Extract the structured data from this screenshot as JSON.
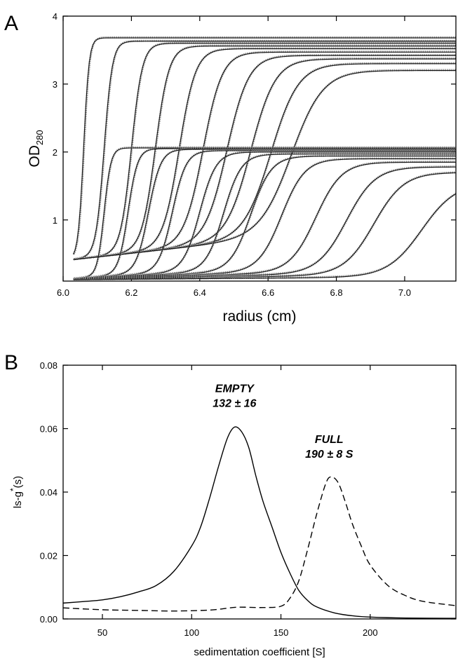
{
  "chart_data": [
    {
      "panel": "A",
      "type": "line",
      "xlabel": "radius (cm)",
      "ylabel": "OD",
      "ylabel_sub": "280",
      "xlim": [
        6.0,
        7.15
      ],
      "ylim": [
        0.1,
        4.0
      ],
      "xticks": [
        6.0,
        6.2,
        6.4,
        6.6,
        6.8,
        7.0
      ],
      "xtick_labels": [
        "6.0",
        "6.2",
        "6.4",
        "6.6",
        "6.8",
        "7.0"
      ],
      "yticks": [
        1,
        2,
        3,
        4
      ],
      "ytick_labels": [
        "1",
        "2",
        "3",
        "4"
      ],
      "series_groups": [
        {
          "plateau": 3.65,
          "meniscus": 6.03,
          "baseline": 0.4,
          "scans": [
            {
              "midpoint": 6.06,
              "width": 0.008,
              "plateau": 3.68
            },
            {
              "midpoint": 6.12,
              "width": 0.012,
              "plateau": 3.63
            },
            {
              "midpoint": 6.2,
              "width": 0.016,
              "plateau": 3.6
            },
            {
              "midpoint": 6.27,
              "width": 0.02,
              "plateau": 3.56
            },
            {
              "midpoint": 6.34,
              "width": 0.024,
              "plateau": 3.52
            },
            {
              "midpoint": 6.41,
              "width": 0.028,
              "plateau": 3.47
            },
            {
              "midpoint": 6.48,
              "width": 0.032,
              "plateau": 3.42
            },
            {
              "midpoint": 6.55,
              "width": 0.036,
              "plateau": 3.37
            },
            {
              "midpoint": 6.61,
              "width": 0.04,
              "plateau": 3.3
            },
            {
              "midpoint": 6.67,
              "width": 0.046,
              "plateau": 3.2
            }
          ]
        },
        {
          "plateau": 2.05,
          "meniscus": 6.03,
          "baseline": 0.12,
          "scans": [
            {
              "midpoint": 6.12,
              "width": 0.01,
              "plateau": 2.06
            },
            {
              "midpoint": 6.19,
              "width": 0.014,
              "plateau": 2.05
            },
            {
              "midpoint": 6.25,
              "width": 0.018,
              "plateau": 2.04
            },
            {
              "midpoint": 6.32,
              "width": 0.02,
              "plateau": 2.02
            },
            {
              "midpoint": 6.4,
              "width": 0.024,
              "plateau": 2.0
            },
            {
              "midpoint": 6.47,
              "width": 0.026,
              "plateau": 1.97
            },
            {
              "midpoint": 6.55,
              "width": 0.03,
              "plateau": 1.94
            },
            {
              "midpoint": 6.64,
              "width": 0.034,
              "plateau": 1.9
            },
            {
              "midpoint": 6.74,
              "width": 0.038,
              "plateau": 1.85
            },
            {
              "midpoint": 6.83,
              "width": 0.042,
              "plateau": 1.78
            },
            {
              "midpoint": 6.91,
              "width": 0.044,
              "plateau": 1.7
            },
            {
              "midpoint": 7.05,
              "width": 0.05,
              "plateau": 1.55
            }
          ]
        }
      ],
      "colors": {
        "fit": "#111111",
        "data": "#8a8a8a"
      }
    },
    {
      "panel": "B",
      "type": "line",
      "xlabel": "sedimentation coefficient [S]",
      "ylabel": "ls-g",
      "ylabel_sup": "*",
      "ylabel_suffix": "(s)",
      "xlim": [
        28,
        248
      ],
      "ylim": [
        0.0,
        0.08
      ],
      "xticks": [
        50,
        100,
        150,
        200
      ],
      "xtick_labels": [
        "50",
        "100",
        "150",
        "200"
      ],
      "yticks": [
        0.0,
        0.02,
        0.04,
        0.06,
        0.08
      ],
      "ytick_labels": [
        "0.00",
        "0.02",
        "0.04",
        "0.06",
        "0.08"
      ],
      "series": [
        {
          "style": "solid",
          "x": [
            28,
            40,
            50,
            60,
            70,
            80,
            90,
            100,
            105,
            110,
            115,
            120,
            124,
            128,
            132,
            136,
            140,
            145,
            150,
            155,
            160,
            165,
            170,
            180,
            190,
            200,
            220,
            248
          ],
          "y": [
            0.005,
            0.0055,
            0.006,
            0.007,
            0.0085,
            0.0105,
            0.015,
            0.023,
            0.029,
            0.038,
            0.048,
            0.057,
            0.0605,
            0.059,
            0.054,
            0.045,
            0.037,
            0.029,
            0.021,
            0.0145,
            0.009,
            0.0058,
            0.0038,
            0.0019,
            0.001,
            0.0006,
            0.0003,
            0.0002
          ]
        },
        {
          "style": "dashed",
          "x": [
            28,
            50,
            70,
            90,
            110,
            120,
            125,
            130,
            140,
            150,
            155,
            160,
            165,
            170,
            175,
            178,
            182,
            186,
            190,
            195,
            200,
            210,
            220,
            230,
            248
          ],
          "y": [
            0.0035,
            0.0029,
            0.0027,
            0.0025,
            0.0028,
            0.0034,
            0.0037,
            0.0037,
            0.0036,
            0.004,
            0.0065,
            0.012,
            0.022,
            0.033,
            0.0425,
            0.0448,
            0.043,
            0.037,
            0.03,
            0.023,
            0.017,
            0.0105,
            0.0073,
            0.0055,
            0.0042
          ]
        }
      ],
      "annotations": [
        {
          "line1": "EMPTY",
          "line2": "132 ± 16",
          "x": 124,
          "y1": 0.0715,
          "y2": 0.0668
        },
        {
          "line1": "FULL",
          "line2": "190 ± 8 S",
          "x": 177,
          "y1": 0.0555,
          "y2": 0.0508
        }
      ]
    }
  ]
}
